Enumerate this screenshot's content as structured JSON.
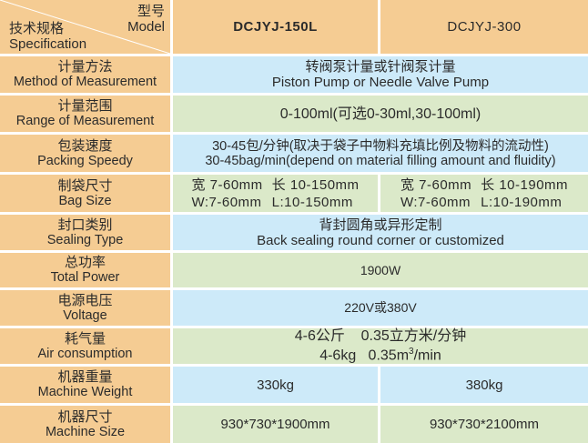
{
  "header": {
    "model_zh": "型号",
    "model_en": "Model",
    "spec_zh": "技术规格",
    "spec_en": "Specification",
    "models": [
      "DCJYJ-150L",
      "DCJYJ-300"
    ]
  },
  "rows": [
    {
      "label_zh": "计量方法",
      "label_en": "Method of Measurement",
      "value_zh": "转阀泵计量或针阀泵计量",
      "value_en": "Piston Pump or Needle Valve Pump"
    },
    {
      "label_zh": "计量范围",
      "label_en": "Range of Measurement",
      "value": "0-100ml(可选0-30ml,30-100ml)"
    },
    {
      "label_zh": "包装速度",
      "label_en": "Packing Speedy",
      "value_zh": "30-45包/分钟(取决于袋子中物料充填比例及物料的流动性)",
      "value_en": "30-45bag/min(depend on material filling amount and fluidity)"
    },
    {
      "label_zh": "制袋尺寸",
      "label_en": "Bag Size",
      "col1": {
        "w_zh": "宽 7-60mm",
        "l_zh": "长 10-150mm",
        "w_en": "W:7-60mm",
        "l_en": "L:10-150mm"
      },
      "col2": {
        "w_zh": "宽 7-60mm",
        "l_zh": "长 10-190mm",
        "w_en": "W:7-60mm",
        "l_en": "L:10-190mm"
      }
    },
    {
      "label_zh": "封口类别",
      "label_en": "Sealing Type",
      "value_zh": "背封圆角或异形定制",
      "value_en": "Back sealing round corner or customized"
    },
    {
      "label_zh": "总功率",
      "label_en": "Total Power",
      "value": "1900W"
    },
    {
      "label_zh": "电源电压",
      "label_en": "Voltage",
      "value": "220V或380V"
    },
    {
      "label_zh": "耗气量",
      "label_en": "Air consumption",
      "value_zh": "4-6公斤    0.35立方米/分钟",
      "value_en_pre": "4-6kg   0.35m",
      "value_en_sup": "3",
      "value_en_post": "/min"
    },
    {
      "label_zh": "机器重量",
      "label_en": "Machine Weight",
      "col1": "330kg",
      "col2": "380kg"
    },
    {
      "label_zh": "机器尺寸",
      "label_en": "Machine Size",
      "col1": "930*730*1900mm",
      "col2": "930*730*2100mm"
    }
  ],
  "colors": {
    "label_bg": "#f5cc93",
    "blue_row": "#cdeaf9",
    "green_row": "#dbe9c9"
  }
}
